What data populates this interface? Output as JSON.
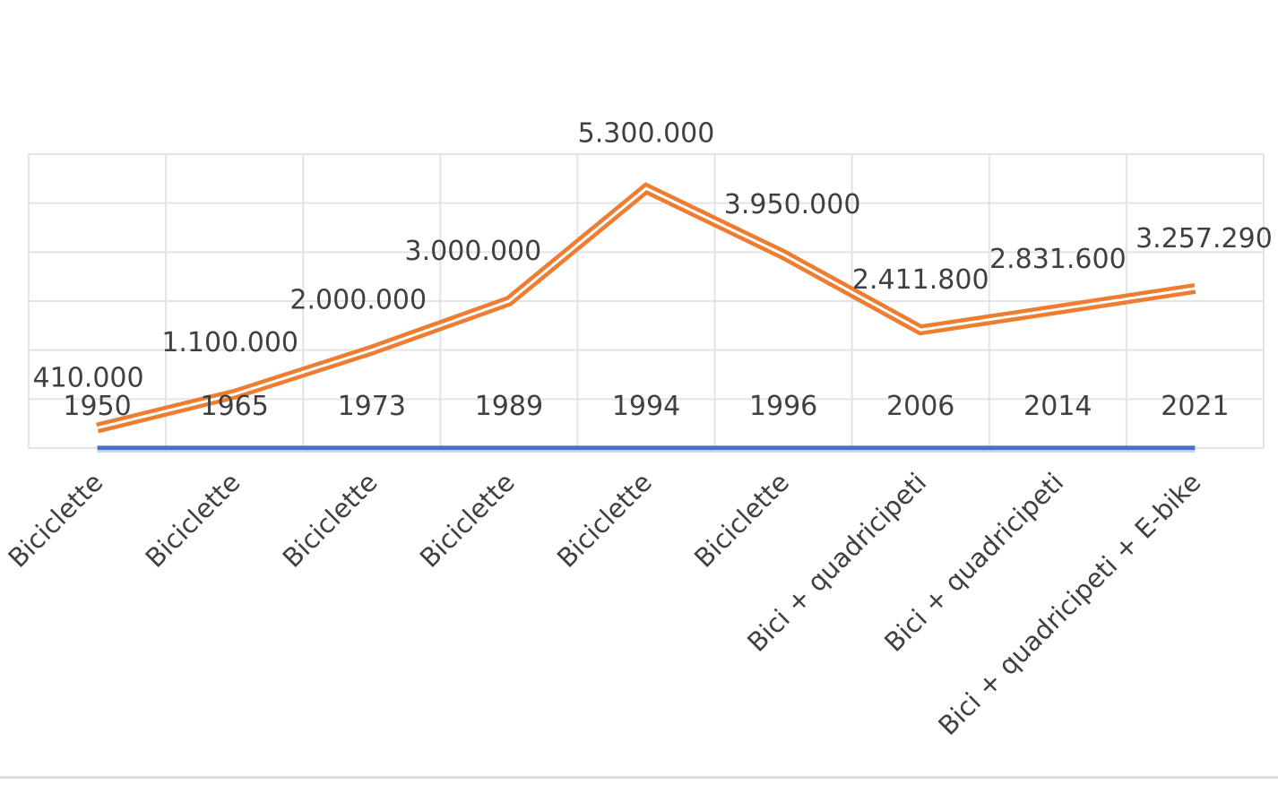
{
  "chart_data": {
    "type": "line",
    "x": [
      "1950",
      "1965",
      "1973",
      "1989",
      "1994",
      "1996",
      "2006",
      "2014",
      "2021"
    ],
    "categories": [
      "Biciclette",
      "Biciclette",
      "Biciclette",
      "Biciclette",
      "Biciclette",
      "Biciclette",
      "Bici + quadricipeti",
      "Bici + quadricipeti",
      "Bici + quadricipeti + E-bike"
    ],
    "data_labels": [
      "410.000",
      "1.100.000",
      "2.000.000",
      "3.000.000",
      "5.300.000",
      "3.950.000",
      "2.411.800",
      "2.831.600",
      "3.257.290"
    ],
    "series": [
      {
        "values": [
          1950,
          1965,
          1973,
          1989,
          1994,
          1996,
          2006,
          2014,
          2021
        ],
        "color": "#4472c4",
        "labels": [
          "1950",
          "1965",
          "1973",
          "1989",
          "1994",
          "1996",
          "2006",
          "2014",
          "2021"
        ]
      },
      {
        "values": [
          410000,
          1100000,
          2000000,
          3000000,
          5300000,
          3950000,
          2411800,
          2831600,
          3257290
        ],
        "color": "#ed7d31",
        "labels": [
          "410.000",
          "1.100.000",
          "2.000.000",
          "3.000.000",
          "5.300.000",
          "3.950.000",
          "2.411.800",
          "2.831.600",
          "3.257.290"
        ]
      }
    ],
    "ylim": [
      0,
      6000000
    ],
    "grid": true,
    "legend": "none",
    "title": "",
    "xlabel": "",
    "ylabel": ""
  }
}
